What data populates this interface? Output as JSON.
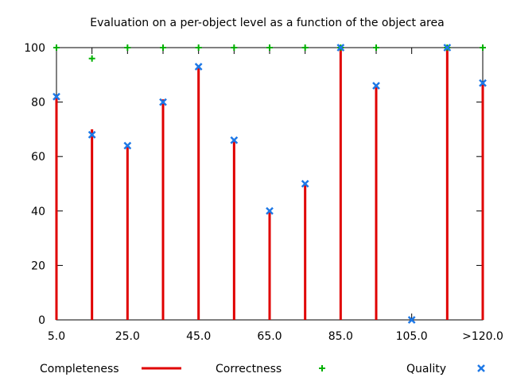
{
  "chart_data": {
    "type": "bar",
    "title": "Evaluation on a per-object level as a function of the object area",
    "xlabel": "",
    "ylabel": "",
    "ylim": [
      0,
      100
    ],
    "grid": false,
    "legend_position": "bottom",
    "x_tick_labels": [
      "5.0",
      "25.0",
      "45.0",
      "65.0",
      "85.0",
      "105.0",
      ">120.0"
    ],
    "y_tick_labels": [
      "0",
      "20",
      "40",
      "60",
      "80",
      "100"
    ],
    "categories": [
      "5.0",
      "15.0",
      "25.0",
      "35.0",
      "45.0",
      "55.0",
      "65.0",
      "75.0",
      "85.0",
      "95.0",
      "105.0",
      "115.0",
      ">120.0"
    ],
    "series": [
      {
        "name": "Completeness",
        "style": "impulse",
        "color": "#e00000",
        "values": [
          82,
          70,
          64,
          81,
          93,
          66,
          40,
          50,
          100,
          86,
          0,
          100,
          87
        ]
      },
      {
        "name": "Correctness",
        "style": "plus",
        "color": "#00b000",
        "values": [
          100,
          96,
          100,
          100,
          100,
          100,
          100,
          100,
          100,
          100,
          null,
          100,
          100
        ]
      },
      {
        "name": "Quality",
        "style": "x",
        "color": "#1e78e6",
        "values": [
          82,
          68,
          64,
          80,
          93,
          66,
          40,
          50,
          100,
          86,
          0,
          100,
          87
        ]
      }
    ]
  }
}
